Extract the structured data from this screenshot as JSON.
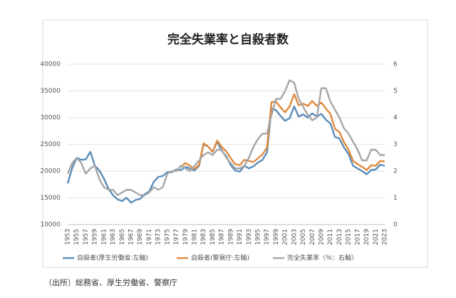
{
  "chart_data": {
    "type": "line",
    "title": "完全失業率と自殺者数",
    "source": "（出所）総務省、厚生労働省、警察庁",
    "categories": [
      "1953",
      null,
      "1955",
      null,
      "1957",
      null,
      "1959",
      null,
      "1961",
      null,
      "1963",
      null,
      "1965",
      null,
      "1967",
      null,
      "1969",
      null,
      "1971",
      null,
      "1973",
      null,
      "1975",
      null,
      "1977",
      null,
      "1979",
      null,
      "1981",
      null,
      "1983",
      null,
      "1985",
      null,
      "1987",
      null,
      "1989",
      null,
      "1991",
      null,
      "1993",
      null,
      "1995",
      null,
      "1997",
      null,
      "1999",
      null,
      "2001",
      null,
      "2003",
      null,
      "2005",
      null,
      "2007",
      null,
      "2009",
      null,
      "2011",
      null,
      "2013",
      null,
      "2015",
      null,
      "2017",
      null,
      "2019",
      null,
      "2021",
      null,
      "2023"
    ],
    "series": [
      {
        "name": "自殺者(厚生労働省:左軸)",
        "color": "#5b8db8",
        "values": [
          17700,
          20600,
          22500,
          22100,
          22200,
          23600,
          21000,
          20100,
          18600,
          16700,
          15500,
          14700,
          14400,
          15000,
          14100,
          14600,
          14800,
          15700,
          16200,
          18000,
          18900,
          19100,
          19800,
          19800,
          20300,
          20200,
          20800,
          20500,
          20100,
          21000,
          25000,
          24600,
          23600,
          25500,
          23800,
          22800,
          21100,
          20100,
          19900,
          21000,
          20500,
          20900,
          21600,
          22100,
          23500,
          31700,
          31400,
          30300,
          29400,
          29900,
          32100,
          30200,
          30600,
          30000,
          30800,
          30200,
          30700,
          29600,
          28900,
          26400,
          26100,
          24400,
          23200,
          21000,
          20500,
          20000,
          19400,
          20200,
          20300,
          21200,
          21000
        ]
      },
      {
        "name": "自殺者(警察庁:左軸)",
        "color": "#e08a3c",
        "values": [
          null,
          null,
          null,
          null,
          null,
          null,
          null,
          null,
          null,
          null,
          null,
          null,
          null,
          null,
          null,
          null,
          null,
          null,
          null,
          null,
          null,
          null,
          null,
          null,
          null,
          20800,
          21500,
          21000,
          20400,
          21200,
          25200,
          24600,
          23600,
          25700,
          24500,
          23700,
          22400,
          21300,
          21100,
          22100,
          21900,
          21700,
          22400,
          23100,
          24400,
          32900,
          33000,
          31900,
          31000,
          32100,
          34400,
          32300,
          32600,
          32200,
          33100,
          32200,
          32800,
          31700,
          30700,
          27900,
          27300,
          25400,
          24000,
          21900,
          21300,
          20800,
          20200,
          21100,
          21000,
          21900,
          21800
        ]
      },
      {
        "name": "完全失業率（％：右軸）",
        "color": "#a6a6a6",
        "axis": "y2",
        "values": [
          1.9,
          2.3,
          2.5,
          2.3,
          1.9,
          2.1,
          2.2,
          1.7,
          1.4,
          1.3,
          1.3,
          1.1,
          1.2,
          1.3,
          1.3,
          1.2,
          1.1,
          1.1,
          1.2,
          1.4,
          1.3,
          1.4,
          1.9,
          2.0,
          2.0,
          2.2,
          2.1,
          2.0,
          2.2,
          2.4,
          2.6,
          2.7,
          2.6,
          2.8,
          2.8,
          2.5,
          2.3,
          2.1,
          2.1,
          2.2,
          2.5,
          2.9,
          3.2,
          3.4,
          3.4,
          4.1,
          4.7,
          4.7,
          5.0,
          5.4,
          5.3,
          4.7,
          4.4,
          4.1,
          3.9,
          4.0,
          5.1,
          5.1,
          4.6,
          4.3,
          4.0,
          3.6,
          3.4,
          3.1,
          2.8,
          2.4,
          2.4,
          2.8,
          2.8,
          2.6,
          2.6
        ]
      }
    ],
    "ylim": [
      10000,
      40000
    ],
    "yticks": [
      10000,
      15000,
      20000,
      25000,
      30000,
      35000,
      40000
    ],
    "y2lim": [
      0,
      6
    ],
    "y2ticks": [
      0,
      1,
      2,
      3,
      4,
      5,
      6
    ],
    "grid": true
  }
}
